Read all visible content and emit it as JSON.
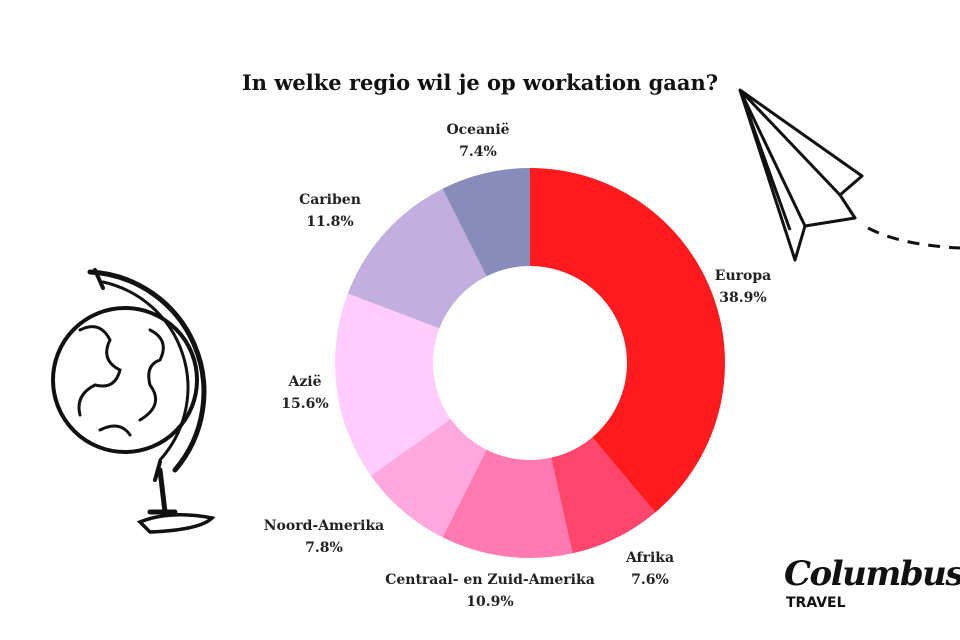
{
  "chart_data": {
    "type": "pie",
    "donut": true,
    "title": "In welke regio wil je op workation gaan?",
    "unit": "%",
    "slices": [
      {
        "label": "Europa",
        "value": 38.9,
        "color": "#ff1a1e"
      },
      {
        "label": "Afrika",
        "value": 7.6,
        "color": "#ff456b"
      },
      {
        "label": "Centraal- en Zuid-Amerika",
        "value": 10.9,
        "color": "#ff7ab0"
      },
      {
        "label": "Noord-Amerika",
        "value": 7.8,
        "color": "#ffa8e0"
      },
      {
        "label": "Azië",
        "value": 15.6,
        "color": "#ffccfc"
      },
      {
        "label": "Cariben",
        "value": 11.8,
        "color": "#c3aee0"
      },
      {
        "label": "Oceanië",
        "value": 7.4,
        "color": "#878cbb"
      }
    ],
    "start_angle": "12 o'clock",
    "direction": "clockwise"
  },
  "branding": {
    "logo_main": "Columbus",
    "logo_sub": "TRAVEL"
  },
  "decorations": [
    "globe-illustration",
    "paper-plane-illustration"
  ]
}
